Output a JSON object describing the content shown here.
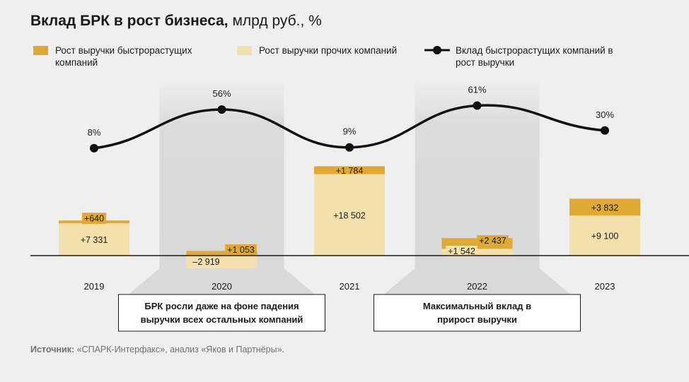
{
  "title": {
    "main": "Вклад БРК в рост бизнеса,",
    "unit": " млрд руб., %"
  },
  "colors": {
    "fast": "#dfa933",
    "other": "#f3e0ad",
    "line": "#111111",
    "highlight": "#d9d9d9",
    "background": "#efefef"
  },
  "legend": {
    "fast": "Рост выручки быстрорастущих компаний",
    "other": "Рост выручки прочих компаний",
    "line": "Вклад быстрорастущих компаний в рост выручки"
  },
  "chart_data": {
    "type": "bar",
    "categories": [
      "2019",
      "2020",
      "2021",
      "2022",
      "2023"
    ],
    "series": [
      {
        "name": "Рост выручки прочих компаний",
        "values": [
          7331,
          -2919,
          18502,
          1542,
          9100
        ],
        "labels": [
          "+7 331",
          "–2 919",
          "+18 502",
          "+1 542",
          "+9 100"
        ]
      },
      {
        "name": "Рост выручки быстрорастущих компаний",
        "values": [
          640,
          1053,
          1784,
          2437,
          3832
        ],
        "labels": [
          "+640",
          "+1 053",
          "+1 784",
          "+2 437",
          "+3 832"
        ]
      }
    ],
    "line": {
      "name": "Вклад быстрорастущих компаний в рост выручки",
      "values": [
        8,
        56,
        9,
        61,
        30
      ],
      "labels": [
        "8%",
        "56%",
        "9%",
        "61%",
        "30%"
      ]
    },
    "highlights": [
      {
        "year": "2020",
        "text": "БРК росли даже на фоне падения выручки всех остальных компаний"
      },
      {
        "year": "2022",
        "text": "Максимальный вклад в прирост выручки"
      }
    ],
    "grid": false,
    "legend_position": "top"
  },
  "source": {
    "label": "Источник:",
    "text": " «СПАРК-Интерфакс», анализ «Яков и Партнёры»."
  }
}
